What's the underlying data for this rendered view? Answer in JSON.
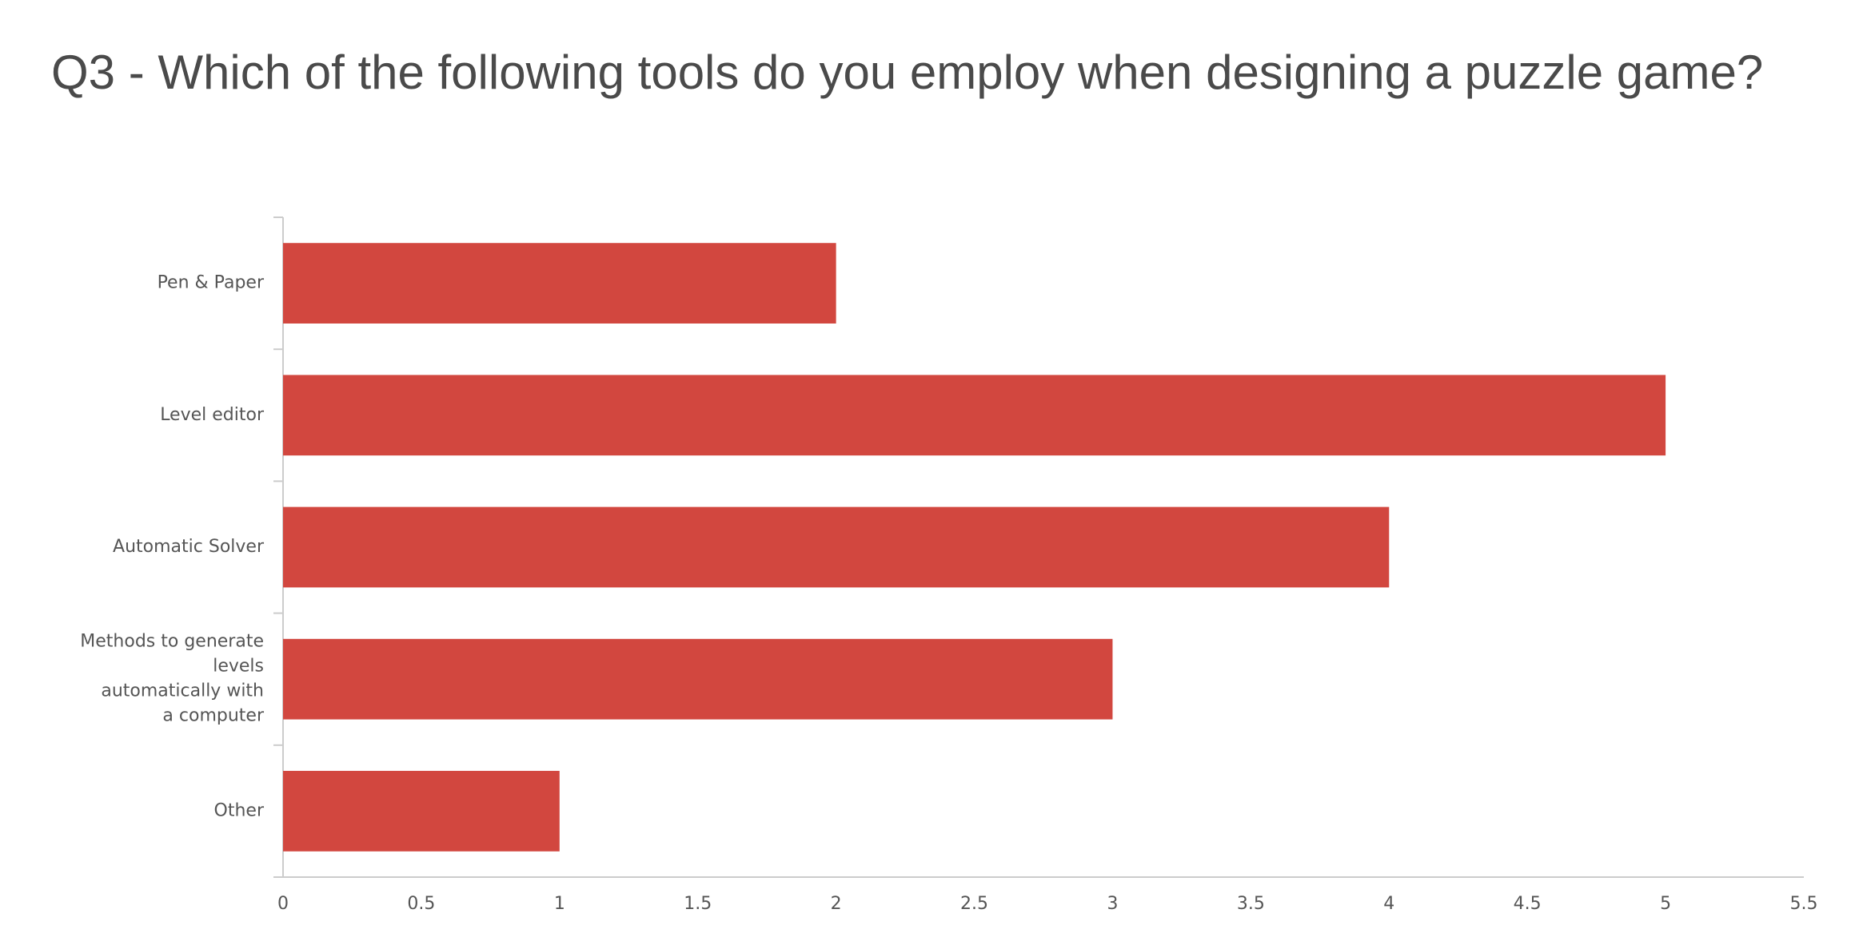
{
  "chart_data": {
    "type": "bar",
    "orientation": "horizontal",
    "title": "Q3 - Which of the following tools do you employ when designing a puzzle game?",
    "categories": [
      [
        "Pen & Paper"
      ],
      [
        "Level editor"
      ],
      [
        "Automatic Solver"
      ],
      [
        "Methods to generate",
        "levels",
        "automatically with",
        "a computer"
      ],
      [
        "Other"
      ]
    ],
    "values": [
      2,
      5,
      4,
      3,
      1
    ],
    "xlim": [
      0,
      5.5
    ],
    "x_ticks": [
      0,
      0.5,
      1,
      1.5,
      2,
      2.5,
      3,
      3.5,
      4,
      4.5,
      5,
      5.5
    ],
    "x_tick_labels": [
      "0",
      "0.5",
      "1",
      "1.5",
      "2",
      "2.5",
      "3",
      "3.5",
      "4",
      "4.5",
      "5",
      "5.5"
    ],
    "grid": false,
    "legend": "none",
    "bar_color": "#d2473f",
    "axis_color": "#cccccc"
  }
}
